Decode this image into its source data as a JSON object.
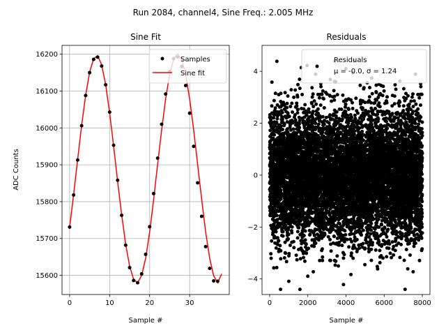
{
  "figure": {
    "suptitle": "Run 2084, channel4, Sine Freq.: 2.005 MHz"
  },
  "chart_data": [
    {
      "type": "line",
      "title": "Sine Fit",
      "xlabel": "Sample #",
      "ylabel": "ADC Counts",
      "xlim": [
        -1.9,
        39.9
      ],
      "ylim": [
        15548,
        16224
      ],
      "x_ticks": [
        0,
        10,
        20,
        30
      ],
      "y_ticks": [
        15600,
        15700,
        15800,
        15900,
        16000,
        16100,
        16200
      ],
      "grid": true,
      "legend": {
        "position": "top-right",
        "entries": [
          "Samples",
          "Sine fit"
        ]
      },
      "series": [
        {
          "name": "Samples",
          "kind": "scatter",
          "color": "#000000",
          "x": [
            0,
            1,
            2,
            3,
            4,
            5,
            6,
            7,
            8,
            9,
            10,
            11,
            12,
            13,
            14,
            15,
            16,
            17,
            18,
            19,
            20,
            21,
            22,
            23,
            24,
            25,
            26,
            27,
            28,
            29,
            30,
            31,
            32,
            33,
            34,
            35,
            36,
            37
          ],
          "y": [
            15731,
            15818,
            15913,
            16006,
            16088,
            16150,
            16186,
            16192,
            16168,
            16117,
            16043,
            15953,
            15858,
            15763,
            15682,
            15621,
            15586,
            15580,
            15604,
            15657,
            15732,
            15822,
            15918,
            16010,
            16092,
            16153,
            16188,
            16192,
            16167,
            16115,
            16040,
            15950,
            15851,
            15760,
            15678,
            15619,
            15585,
            15584
          ]
        },
        {
          "name": "Sine fit",
          "kind": "line",
          "color": "#ff0000",
          "x": [
            0,
            1,
            2,
            3,
            4,
            5,
            6,
            7,
            8,
            9,
            10,
            11,
            12,
            13,
            14,
            15,
            16,
            17,
            18,
            19,
            20,
            21,
            22,
            23,
            24,
            25,
            26,
            27,
            28,
            29,
            30,
            31,
            32,
            33,
            34,
            35,
            36,
            37,
            38
          ],
          "y": [
            15730,
            15820,
            15914,
            16006,
            16088,
            16151,
            16188,
            16196,
            16172,
            16118,
            16041,
            15950,
            15855,
            15764,
            15685,
            15625,
            15589,
            15580,
            15600,
            15646,
            15717,
            15806,
            15902,
            15995,
            16079,
            16145,
            16187,
            16201,
            16186,
            16144,
            16078,
            15995,
            15901,
            15806,
            15718,
            15646,
            15599,
            15580,
            15604
          ]
        }
      ]
    },
    {
      "type": "scatter",
      "title": "Residuals",
      "xlabel": "Sample #",
      "ylabel": "",
      "xlim": [
        -400,
        8400
      ],
      "ylim": [
        -4.6,
        5.0
      ],
      "x_ticks": [
        0,
        2000,
        4000,
        6000,
        8000
      ],
      "y_ticks": [
        -4,
        -2,
        0,
        2,
        4
      ],
      "grid": false,
      "legend": {
        "position": "top-right",
        "entries": [
          "Residuals",
          "μ = -0.0, σ = 1.24"
        ]
      },
      "n_points": 8000,
      "mean": 0.0,
      "sigma": 1.24,
      "series": [
        {
          "name": "Residuals",
          "color": "#000000",
          "x_range": [
            0,
            8000
          ],
          "mean": 0.0,
          "sigma": 1.24
        }
      ]
    }
  ]
}
